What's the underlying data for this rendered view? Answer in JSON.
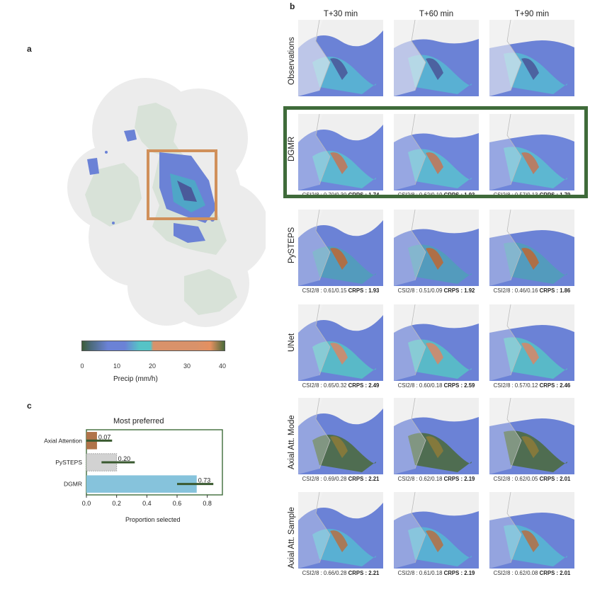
{
  "panels": {
    "a": {
      "letter": "a",
      "colorbar": {
        "ticks": [
          "0",
          "10",
          "20",
          "30",
          "40"
        ],
        "label": "Precip (mm/h)"
      }
    },
    "b": {
      "letter": "b",
      "columns": [
        "T+30 min",
        "T+60 min",
        "T+90 min"
      ],
      "rows": [
        {
          "label": "Observations",
          "metrics": [
            "",
            "",
            ""
          ]
        },
        {
          "label": "DGMR",
          "highlighted": true,
          "metrics": [
            {
              "csi": "CSI2/8 : 0.70/0.30",
              "crps": "CRPS : 1.74"
            },
            {
              "csi": "CSI2/8 : 0.62/0.19",
              "crps": "CRPS : 1.93"
            },
            {
              "csi": "CSI2/8 : 0.57/0.13",
              "crps": "CRPS : 1.79"
            }
          ]
        },
        {
          "label": "PySTEPS",
          "metrics": [
            {
              "csi": "CSI2/8 : 0.61/0.15",
              "crps": "CRPS : 1.93"
            },
            {
              "csi": "CSI2/8 : 0.51/0.09",
              "crps": "CRPS : 1.92"
            },
            {
              "csi": "CSI2/8 : 0.46/0.16",
              "crps": "CRPS : 1.86"
            }
          ]
        },
        {
          "label": "UNet",
          "metrics": [
            {
              "csi": "CSI2/8 : 0.65/0.32",
              "crps": "CRPS : 2.49"
            },
            {
              "csi": "CSI2/8 : 0.60/0.18",
              "crps": "CRPS : 2.59"
            },
            {
              "csi": "CSI2/8 : 0.57/0.12",
              "crps": "CRPS : 2.46"
            }
          ]
        },
        {
          "label": "Axial Att. Mode",
          "metrics": [
            {
              "csi": "CSI2/8 : 0.69/0.28",
              "crps": "CRPS : 2.21"
            },
            {
              "csi": "CSI2/8 : 0.62/0.18",
              "crps": "CRPS : 2.19"
            },
            {
              "csi": "CSI2/8 : 0.62/0.05",
              "crps": "CRPS : 2.01"
            }
          ]
        },
        {
          "label": "Axial Att. Sample",
          "metrics": [
            {
              "csi": "CSI2/8 : 0.66/0.28",
              "crps": "CRPS : 2.21"
            },
            {
              "csi": "CSI2/8 : 0.61/0.18",
              "crps": "CRPS : 2.19"
            },
            {
              "csi": "CSI2/8 : 0.62/0.08",
              "crps": "CRPS : 2.01"
            }
          ]
        }
      ]
    },
    "c": {
      "letter": "c"
    }
  },
  "chart_data": {
    "type": "bar",
    "orientation": "horizontal",
    "title": "Most preferred",
    "xlabel": "Proportion selected",
    "ylabel": "",
    "categories": [
      "Axial Attention",
      "PySTEPS",
      "DGMR"
    ],
    "values": [
      0.07,
      0.2,
      0.73
    ],
    "value_labels": [
      "0.07",
      "0.20",
      "0.73"
    ],
    "error_low": [
      0.0,
      0.1,
      0.6
    ],
    "error_high": [
      0.17,
      0.32,
      0.84
    ],
    "colors": [
      "#b0734a",
      "#d2d2d2",
      "#86c3dc"
    ],
    "xlim": [
      0,
      0.9
    ],
    "xticks": [
      "0.0",
      "0.2",
      "0.4",
      "0.6",
      "0.8"
    ]
  }
}
